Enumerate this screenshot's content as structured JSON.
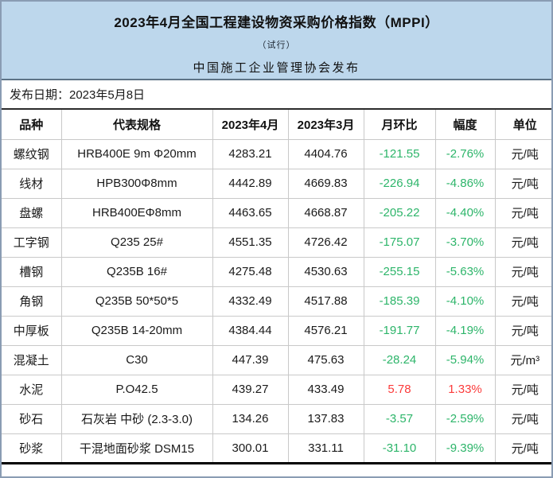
{
  "header": {
    "title": "2023年4月全国工程建设物资采购价格指数（MPPI）",
    "subtitle": "（试行）",
    "publisher": "中国施工企业管理协会发布"
  },
  "release": {
    "label": "发布日期：2023年5月8日"
  },
  "colors": {
    "down": "#2db56a",
    "up": "#fb3b3b",
    "band_bg": "#bdd7ec"
  },
  "table": {
    "columns": [
      "品种",
      "代表规格",
      "2023年4月",
      "2023年3月",
      "月环比",
      "幅度",
      "单位"
    ],
    "rows": [
      {
        "variety": "螺纹钢",
        "spec": "HRB400E 9m Φ20mm",
        "apr": "4283.21",
        "mar": "4404.76",
        "mom": "-121.55",
        "pct": "-2.76%",
        "unit": "元/吨",
        "trend": "down"
      },
      {
        "variety": "线材",
        "spec": "HPB300Φ8mm",
        "apr": "4442.89",
        "mar": "4669.83",
        "mom": "-226.94",
        "pct": "-4.86%",
        "unit": "元/吨",
        "trend": "down"
      },
      {
        "variety": "盘螺",
        "spec": "HRB400EΦ8mm",
        "apr": "4463.65",
        "mar": "4668.87",
        "mom": "-205.22",
        "pct": "-4.40%",
        "unit": "元/吨",
        "trend": "down"
      },
      {
        "variety": "工字钢",
        "spec": "Q235 25#",
        "apr": "4551.35",
        "mar": "4726.42",
        "mom": "-175.07",
        "pct": "-3.70%",
        "unit": "元/吨",
        "trend": "down"
      },
      {
        "variety": "槽钢",
        "spec": "Q235B 16#",
        "apr": "4275.48",
        "mar": "4530.63",
        "mom": "-255.15",
        "pct": "-5.63%",
        "unit": "元/吨",
        "trend": "down"
      },
      {
        "variety": "角钢",
        "spec": "Q235B 50*50*5",
        "apr": "4332.49",
        "mar": "4517.88",
        "mom": "-185.39",
        "pct": "-4.10%",
        "unit": "元/吨",
        "trend": "down"
      },
      {
        "variety": "中厚板",
        "spec": "Q235B 14-20mm",
        "apr": "4384.44",
        "mar": "4576.21",
        "mom": "-191.77",
        "pct": "-4.19%",
        "unit": "元/吨",
        "trend": "down"
      },
      {
        "variety": "混凝土",
        "spec": "C30",
        "apr": "447.39",
        "mar": "475.63",
        "mom": "-28.24",
        "pct": "-5.94%",
        "unit": "元/m³",
        "trend": "down"
      },
      {
        "variety": "水泥",
        "spec": "P.O42.5",
        "apr": "439.27",
        "mar": "433.49",
        "mom": "5.78",
        "pct": "1.33%",
        "unit": "元/吨",
        "trend": "up"
      },
      {
        "variety": "砂石",
        "spec": "石灰岩 中砂 (2.3-3.0)",
        "apr": "134.26",
        "mar": "137.83",
        "mom": "-3.57",
        "pct": "-2.59%",
        "unit": "元/吨",
        "trend": "down"
      },
      {
        "variety": "砂浆",
        "spec": "干混地面砂浆 DSM15",
        "apr": "300.01",
        "mar": "331.11",
        "mom": "-31.10",
        "pct": "-9.39%",
        "unit": "元/吨",
        "trend": "down"
      }
    ]
  }
}
